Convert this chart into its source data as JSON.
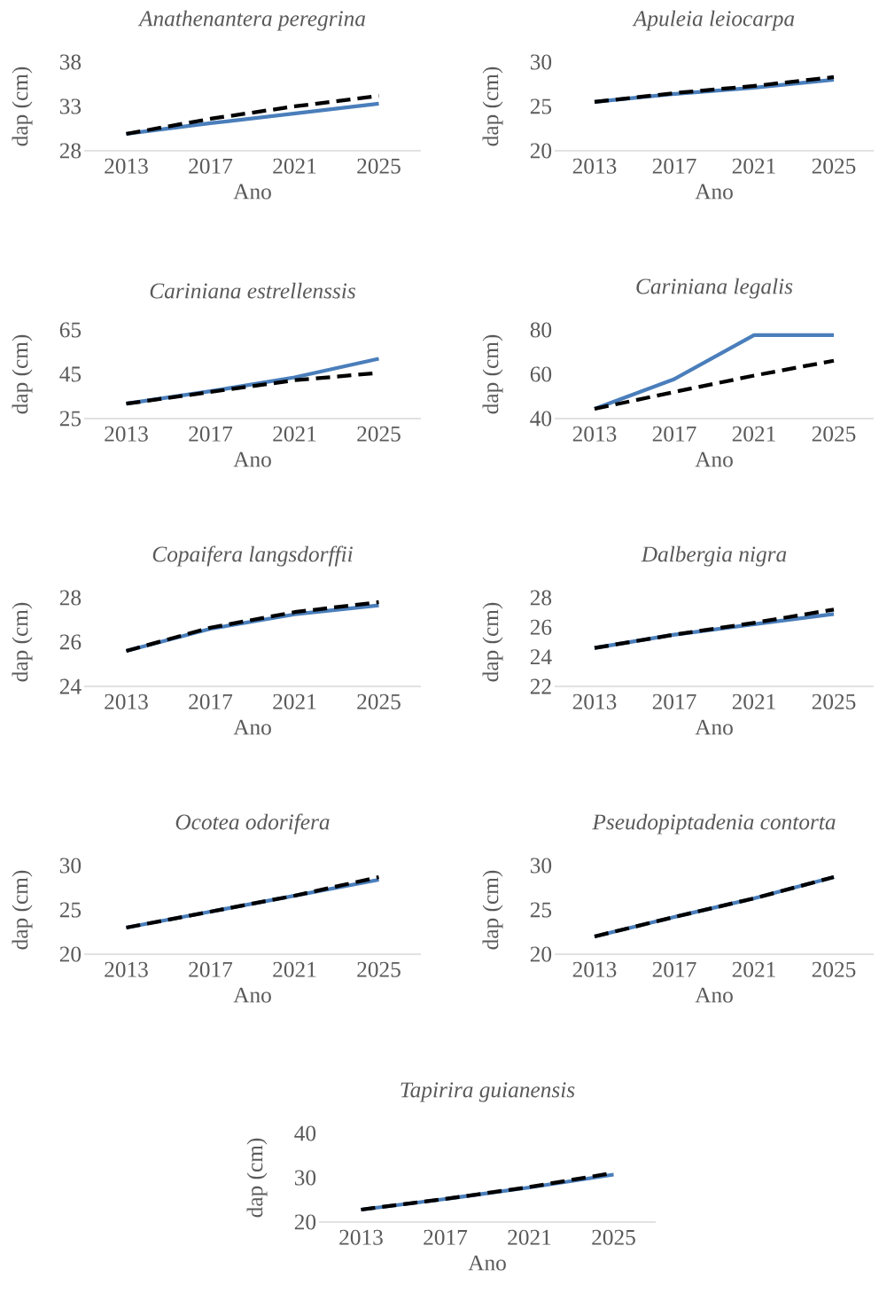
{
  "chart_data": [
    {
      "type": "line",
      "title": "Anathenantera peregrina",
      "xlabel": "Ano",
      "ylabel": "dap (cm)",
      "categories": [
        "2013",
        "2017",
        "2021",
        "2025"
      ],
      "ylim": [
        28,
        38
      ],
      "yticks": [
        28,
        33,
        38
      ],
      "series": [
        {
          "color": "#4a7ebb",
          "line_style": "solid",
          "values": [
            29.9,
            31.1,
            32.2,
            33.3
          ]
        },
        {
          "color": "#000000",
          "line_style": "dashed",
          "values": [
            29.9,
            31.6,
            33.0,
            34.2
          ]
        }
      ]
    },
    {
      "type": "line",
      "title": "Apuleia leiocarpa",
      "xlabel": "Ano",
      "ylabel": "dap (cm)",
      "categories": [
        "2013",
        "2017",
        "2021",
        "2025"
      ],
      "ylim": [
        20,
        30
      ],
      "yticks": [
        20,
        25,
        30
      ],
      "series": [
        {
          "color": "#4a7ebb",
          "line_style": "solid",
          "values": [
            25.5,
            26.4,
            27.1,
            28.0
          ]
        },
        {
          "color": "#000000",
          "line_style": "dashed",
          "values": [
            25.5,
            26.5,
            27.3,
            28.3
          ]
        }
      ]
    },
    {
      "type": "line",
      "title": "Cariniana estrellenssis",
      "xlabel": "Ano",
      "ylabel": "dap (cm)",
      "categories": [
        "2013",
        "2017",
        "2021",
        "2025"
      ],
      "ylim": [
        25,
        65
      ],
      "yticks": [
        25,
        45,
        65
      ],
      "series": [
        {
          "color": "#4a7ebb",
          "line_style": "solid",
          "values": [
            31.7,
            37.3,
            43.6,
            52.0
          ]
        },
        {
          "color": "#000000",
          "line_style": "dashed",
          "values": [
            31.7,
            37.0,
            42.3,
            45.6
          ]
        }
      ]
    },
    {
      "type": "line",
      "title": "Cariniana legalis",
      "xlabel": "Ano",
      "ylabel": "dap (cm)",
      "categories": [
        "2013",
        "2017",
        "2021",
        "2025"
      ],
      "ylim": [
        40,
        80
      ],
      "yticks": [
        40,
        60,
        80
      ],
      "series": [
        {
          "color": "#4a7ebb",
          "line_style": "solid",
          "values": [
            44.4,
            57.8,
            77.6,
            77.6
          ]
        },
        {
          "color": "#000000",
          "line_style": "dashed",
          "values": [
            44.4,
            52.0,
            59.4,
            66.1
          ]
        }
      ]
    },
    {
      "type": "line",
      "title": "Copaifera langsdorffii",
      "xlabel": "Ano",
      "ylabel": "dap (cm)",
      "categories": [
        "2013",
        "2017",
        "2021",
        "2025"
      ],
      "ylim": [
        24,
        28
      ],
      "yticks": [
        24,
        26,
        28
      ],
      "series": [
        {
          "color": "#4a7ebb",
          "line_style": "solid",
          "values": [
            25.6,
            26.6,
            27.25,
            27.65
          ]
        },
        {
          "color": "#000000",
          "line_style": "dashed",
          "values": [
            25.6,
            26.65,
            27.35,
            27.8
          ]
        }
      ]
    },
    {
      "type": "line",
      "title": "Dalbergia nigra",
      "xlabel": "Ano",
      "ylabel": "dap (cm)",
      "categories": [
        "2013",
        "2017",
        "2021",
        "2025"
      ],
      "ylim": [
        22,
        28
      ],
      "yticks": [
        22,
        24,
        26,
        28
      ],
      "series": [
        {
          "color": "#4a7ebb",
          "line_style": "solid",
          "values": [
            24.6,
            25.5,
            26.2,
            26.9
          ]
        },
        {
          "color": "#000000",
          "line_style": "dashed",
          "values": [
            24.6,
            25.5,
            26.3,
            27.2
          ]
        }
      ]
    },
    {
      "type": "line",
      "title": "Ocotea odorifera",
      "xlabel": "Ano",
      "ylabel": "dap (cm)",
      "categories": [
        "2013",
        "2017",
        "2021",
        "2025"
      ],
      "ylim": [
        20,
        30
      ],
      "yticks": [
        20,
        25,
        30
      ],
      "series": [
        {
          "color": "#4a7ebb",
          "line_style": "solid",
          "values": [
            23.0,
            24.8,
            26.6,
            28.4
          ]
        },
        {
          "color": "#000000",
          "line_style": "dashed",
          "values": [
            23.0,
            24.8,
            26.6,
            28.7
          ]
        }
      ]
    },
    {
      "type": "line",
      "title": "Pseudopiptadenia contorta",
      "xlabel": "Ano",
      "ylabel": "dap (cm)",
      "categories": [
        "2013",
        "2017",
        "2021",
        "2025"
      ],
      "ylim": [
        20,
        30
      ],
      "yticks": [
        20,
        25,
        30
      ],
      "series": [
        {
          "color": "#4a7ebb",
          "line_style": "solid",
          "values": [
            22.0,
            24.2,
            26.3,
            28.7
          ]
        },
        {
          "color": "#000000",
          "line_style": "dashed",
          "values": [
            22.0,
            24.2,
            26.3,
            28.7
          ]
        }
      ]
    },
    {
      "type": "line",
      "title": "Tapirira guianensis",
      "xlabel": "Ano",
      "ylabel": "dap (cm)",
      "categories": [
        "2013",
        "2017",
        "2021",
        "2025"
      ],
      "ylim": [
        20,
        40
      ],
      "yticks": [
        20,
        30,
        40
      ],
      "series": [
        {
          "color": "#4a7ebb",
          "line_style": "solid",
          "values": [
            22.8,
            25.2,
            27.8,
            30.7
          ]
        },
        {
          "color": "#000000",
          "line_style": "dashed",
          "values": [
            22.8,
            25.2,
            27.9,
            31.1
          ]
        }
      ]
    }
  ]
}
